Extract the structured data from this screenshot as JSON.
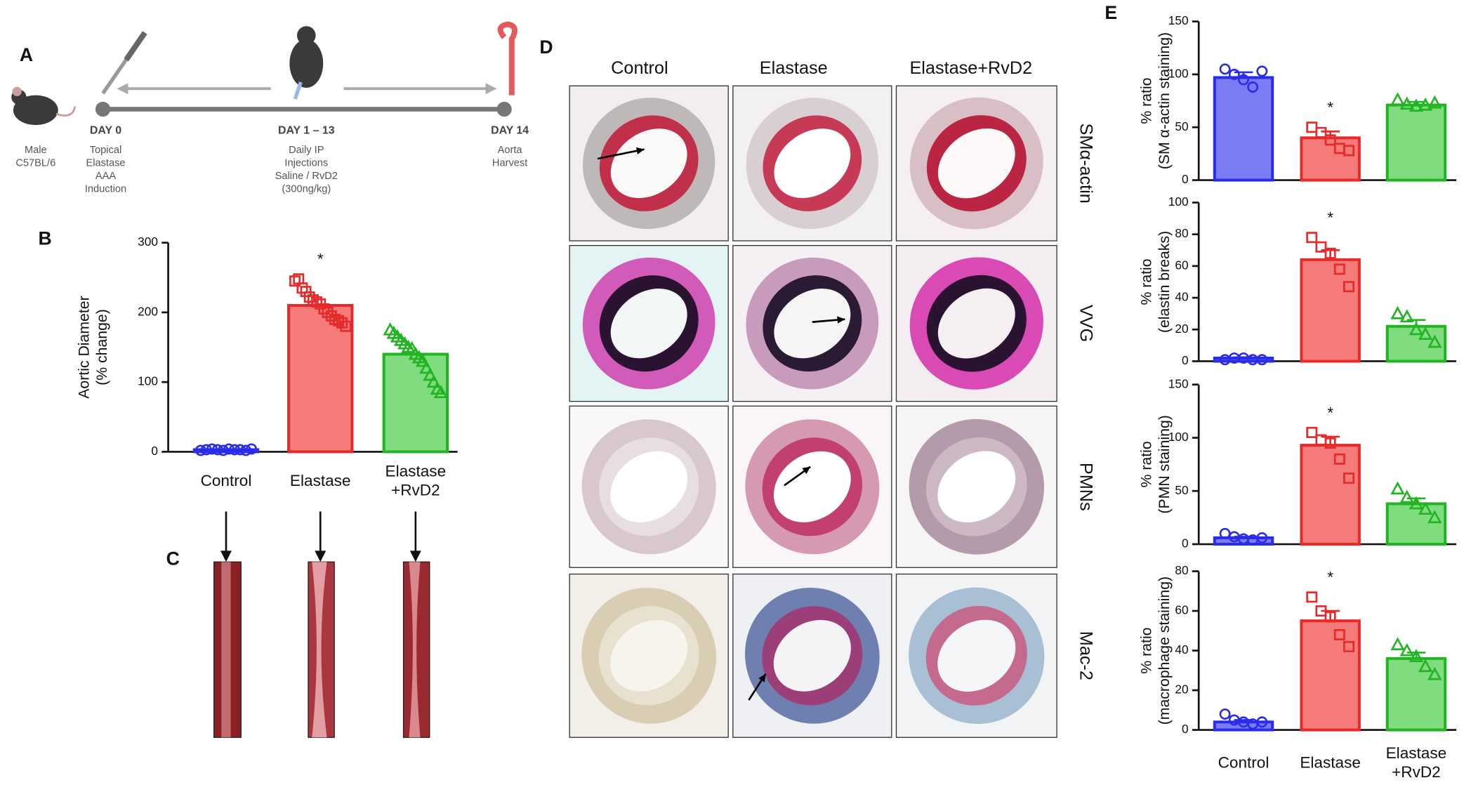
{
  "chart_data": [
    {
      "type": "bar",
      "ylabel": "Aortic Diameter\n(% change)",
      "categories": [
        "Control",
        "Elastase",
        "Elastase\n+RvD2"
      ],
      "colors": [
        "#2b2bea",
        "#e62a2a",
        "#22b422"
      ],
      "fills": [
        "#7b7bf4",
        "#f57a7a",
        "#7fdc7f"
      ],
      "values": [
        3,
        210,
        140
      ],
      "ylim": [
        0,
        300
      ],
      "yticks": [
        0,
        100,
        200,
        300
      ],
      "annotation": "*",
      "points": [
        [
          2,
          3,
          4,
          3,
          2,
          4,
          3,
          3,
          2,
          4
        ],
        [
          245,
          248,
          235,
          230,
          222,
          218,
          215,
          212,
          205,
          200,
          195,
          190,
          188,
          185,
          180
        ],
        [
          175,
          170,
          165,
          160,
          155,
          150,
          148,
          140,
          135,
          130,
          120,
          110,
          100,
          90,
          85
        ]
      ]
    },
    {
      "type": "bar",
      "ylabel": "% ratio\n(SM α-actin staining)",
      "colors": [
        "#2b2bea",
        "#e62a2a",
        "#22b422"
      ],
      "fills": [
        "#7b7bf4",
        "#f57a7a",
        "#7fdc7f"
      ],
      "values": [
        97,
        40,
        71
      ],
      "errors": [
        5,
        6,
        3
      ],
      "ylim": [
        0,
        150
      ],
      "yticks": [
        0,
        50,
        100,
        150
      ],
      "annotation": "*",
      "points": [
        [
          105,
          100,
          95,
          88,
          103
        ],
        [
          50,
          45,
          38,
          30,
          28
        ],
        [
          76,
          72,
          70,
          71,
          73
        ]
      ]
    },
    {
      "type": "bar",
      "ylabel": "% ratio\n(elastin breaks)",
      "colors": [
        "#2b2bea",
        "#e62a2a",
        "#22b422"
      ],
      "fills": [
        "#7b7bf4",
        "#f57a7a",
        "#7fdc7f"
      ],
      "values": [
        2,
        64,
        22
      ],
      "errors": [
        0.5,
        6,
        4
      ],
      "ylim": [
        0,
        100
      ],
      "yticks": [
        0,
        20,
        40,
        60,
        80,
        100
      ],
      "annotation": "*",
      "points": [
        [
          1,
          2,
          2,
          1,
          1
        ],
        [
          78,
          72,
          68,
          58,
          47
        ],
        [
          30,
          28,
          20,
          17,
          12
        ]
      ]
    },
    {
      "type": "bar",
      "ylabel": "% ratio\n(PMN staining)",
      "colors": [
        "#2b2bea",
        "#e62a2a",
        "#22b422"
      ],
      "fills": [
        "#7b7bf4",
        "#f57a7a",
        "#7fdc7f"
      ],
      "values": [
        6,
        93,
        38
      ],
      "errors": [
        1,
        8,
        5
      ],
      "ylim": [
        0,
        150
      ],
      "yticks": [
        0,
        50,
        100,
        150
      ],
      "annotation": "*",
      "points": [
        [
          10,
          7,
          5,
          4,
          6
        ],
        [
          105,
          98,
          95,
          80,
          62
        ],
        [
          52,
          44,
          38,
          33,
          25
        ]
      ]
    },
    {
      "type": "bar",
      "ylabel": "% ratio\n(macrophage staining)",
      "categories": [
        "Control",
        "Elastase",
        "Elastase\n+RvD2"
      ],
      "colors": [
        "#2b2bea",
        "#e62a2a",
        "#22b422"
      ],
      "fills": [
        "#7b7bf4",
        "#f57a7a",
        "#7fdc7f"
      ],
      "values": [
        4,
        55,
        36
      ],
      "errors": [
        1,
        5,
        3
      ],
      "ylim": [
        0,
        80
      ],
      "yticks": [
        0,
        20,
        40,
        60,
        80
      ],
      "annotation": "*",
      "points": [
        [
          8,
          5,
          4,
          3,
          4
        ],
        [
          67,
          60,
          57,
          48,
          42
        ],
        [
          43,
          40,
          37,
          32,
          28
        ]
      ]
    }
  ],
  "figure": {
    "panel_labels": [
      "A",
      "B",
      "C",
      "D",
      "E"
    ],
    "mouse": [
      "Male",
      "C57BL/6"
    ],
    "day0": {
      "title": "DAY 0",
      "lines": [
        "Topical",
        "Elastase",
        "AAA",
        "Induction"
      ]
    },
    "day1": {
      "title": "DAY 1 – 13",
      "lines": [
        "Daily IP",
        "Injections",
        "Saline / RvD2",
        "(300ng/kg)"
      ]
    },
    "day14": {
      "title": "DAY 14",
      "lines": [
        "Aorta",
        "Harvest"
      ]
    },
    "histology": {
      "columns": [
        "Control",
        "Elastase",
        "Elastase+RvD2"
      ],
      "rows": [
        "SMα-actin",
        "VVG",
        "PMNs",
        "Mac-2"
      ]
    }
  }
}
